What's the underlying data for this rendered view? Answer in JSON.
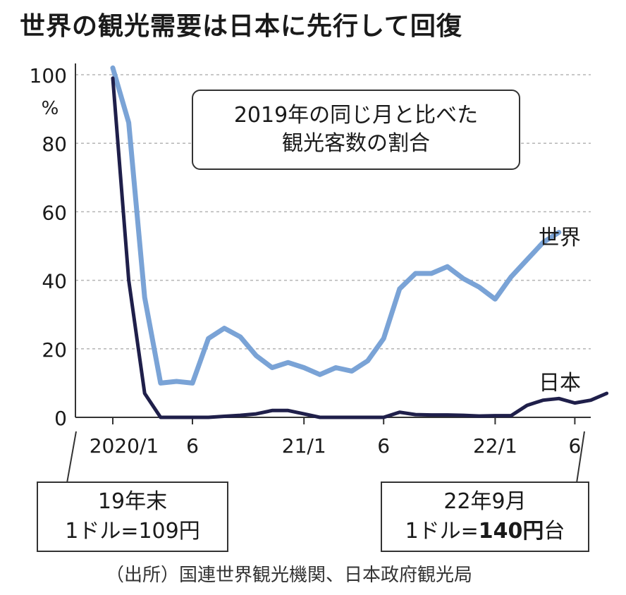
{
  "chart_data": {
    "type": "line",
    "title": "世界の観光需要は日本に先行して回復",
    "annotation": [
      "2019年の同じ月と比べた",
      "観光客数の割合"
    ],
    "ylabel": "%",
    "ylim": [
      0,
      100
    ],
    "yticks": [
      0,
      20,
      40,
      60,
      80,
      100
    ],
    "xticks": [
      {
        "x": 0,
        "label": "2020/1"
      },
      {
        "x": 5,
        "label": "6"
      },
      {
        "x": 12,
        "label": "21/1"
      },
      {
        "x": 17,
        "label": "6"
      },
      {
        "x": 24,
        "label": "22/1"
      },
      {
        "x": 29,
        "label": "6"
      }
    ],
    "grid": "horizontal-dashed",
    "series": [
      {
        "name": "世界",
        "color": "#7aa3d6",
        "values": [
          102,
          86,
          35,
          10,
          10.5,
          10,
          23,
          26,
          23.5,
          18,
          14.5,
          16,
          14.5,
          12.5,
          14.5,
          13.5,
          16.5,
          23,
          37.5,
          42,
          42,
          44,
          40.5,
          38,
          34.5,
          41,
          46,
          51,
          54
        ]
      },
      {
        "name": "日本",
        "color": "#1f1f4a",
        "values": [
          99,
          40,
          7,
          0,
          0,
          0,
          0,
          0.3,
          0.6,
          1,
          2,
          2,
          1,
          0,
          0,
          0,
          0,
          0,
          1.5,
          0.8,
          0.7,
          0.7,
          0.6,
          0.4,
          0.5,
          0.5,
          3.5,
          5,
          5.5,
          4.2,
          5,
          7
        ]
      }
    ]
  },
  "notes": {
    "left": {
      "line1": "19年末",
      "line2": "1ドル=109円"
    },
    "right": {
      "line1": "22年9月",
      "line2a": "1ドル=",
      "line2b": "140円",
      "line2c": "台"
    }
  },
  "source": "（出所）国連世界観光機関、日本政府観光局"
}
